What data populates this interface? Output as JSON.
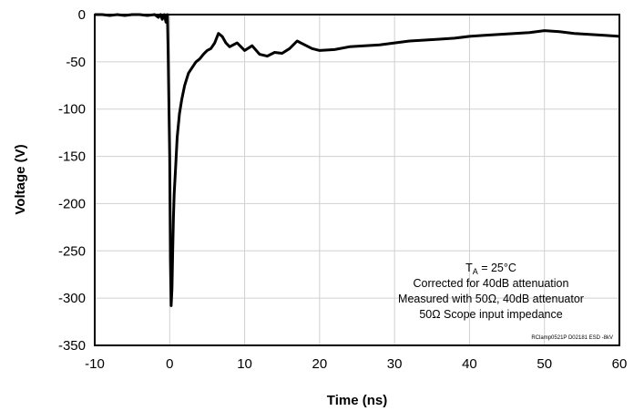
{
  "chart_data": {
    "type": "line",
    "title": "",
    "xlabel": "Time (ns)",
    "ylabel": "Voltage (V)",
    "xlim": [
      -10,
      60
    ],
    "ylim": [
      -350,
      0
    ],
    "xticks": [
      -10,
      0,
      10,
      20,
      30,
      40,
      50,
      60
    ],
    "yticks": [
      0,
      -50,
      -100,
      -150,
      -200,
      -250,
      -300,
      -350
    ],
    "grid": true,
    "series": [
      {
        "name": "",
        "color": "#000000",
        "x": [
          -10,
          -9,
          -8,
          -7,
          -6,
          -5,
          -4,
          -3,
          -2,
          -1.5,
          -1.2,
          -1,
          -0.7,
          -0.5,
          -0.3,
          -0.2,
          0,
          0.1,
          0.2,
          0.3,
          0.4,
          0.5,
          0.6,
          0.8,
          1,
          1.3,
          1.6,
          2,
          2.5,
          3,
          3.5,
          4,
          4.5,
          5,
          5.5,
          6,
          6.5,
          7,
          7.5,
          8,
          9,
          10,
          11,
          12,
          13,
          14,
          15,
          16,
          17,
          18,
          19,
          20,
          22,
          24,
          26,
          28,
          30,
          32,
          34,
          36,
          38,
          40,
          42,
          44,
          46,
          48,
          50,
          52,
          54,
          56,
          58,
          60
        ],
        "y": [
          0,
          0,
          -1,
          0,
          -1,
          0,
          0,
          -1,
          0,
          -3,
          0,
          -5,
          0,
          -8,
          0,
          -40,
          -150,
          -260,
          -308,
          -290,
          -250,
          -215,
          -190,
          -160,
          -130,
          -105,
          -90,
          -75,
          -62,
          -56,
          -50,
          -47,
          -42,
          -38,
          -36,
          -30,
          -20,
          -23,
          -30,
          -34,
          -30,
          -38,
          -33,
          -42,
          -44,
          -40,
          -41,
          -36,
          -28,
          -32,
          -36,
          -38,
          -37,
          -34,
          -33,
          -32,
          -30,
          -28,
          -27,
          -26,
          -25,
          -23,
          -22,
          -21,
          -20,
          -19,
          -17,
          -18,
          -20,
          -21,
          -22,
          -23
        ]
      }
    ]
  },
  "annotation": {
    "ta_symbol": "T",
    "ta_subscript": "A",
    "ta_value": " = 25°C",
    "line2": "Corrected for 40dB attenuation",
    "line3": "Measured with 50Ω, 40dB attenuator",
    "line4": "50Ω Scope input impedance",
    "footnote": "RClamp0521P D02181 ESD -8kV"
  }
}
